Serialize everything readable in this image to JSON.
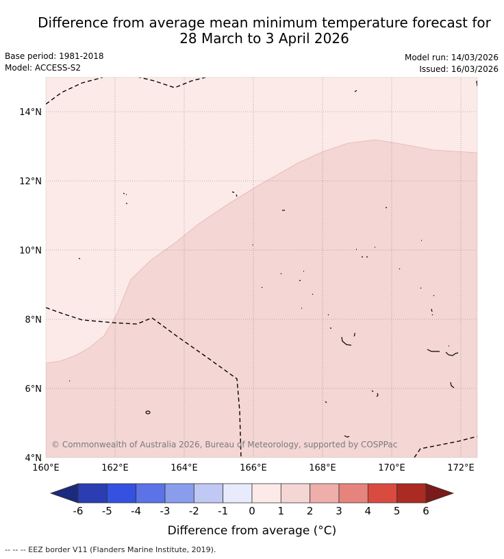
{
  "title_line1": "Difference from average mean minimum temperature forecast for",
  "title_line2": "28 March to 3 April 2026",
  "base_period": "Base period: 1981-2018",
  "model": "Model: ACCESS-S2",
  "model_run": "Model run: 14/03/2026",
  "issued": "Issued: 16/03/2026",
  "copyright": "© Commonwealth of Australia 2026, Bureau of Meteorology, supported by COSPPac",
  "map": {
    "lon_ticks": [
      "160°E",
      "162°E",
      "164°E",
      "166°E",
      "168°E",
      "170°E",
      "172°E"
    ],
    "lat_ticks": [
      "14°N",
      "12°N",
      "10°N",
      "8°N",
      "6°N",
      "4°N"
    ],
    "regions": [
      {
        "name": "0 to 1",
        "color": "#fbeae8"
      },
      {
        "name": "1 to 2",
        "color": "#f4d6d4"
      }
    ],
    "eez_color": "#000000"
  },
  "colorbar": {
    "label": "Difference from average (°C)",
    "tick_labels": [
      "-6",
      "-5",
      "-4",
      "-3",
      "-2",
      "-1",
      "0",
      "1",
      "2",
      "3",
      "4",
      "5",
      "6"
    ],
    "under_color": "#1b2a7d",
    "over_color": "#7a1a1a",
    "colors": [
      "#2a3eb1",
      "#3451e0",
      "#5b73e6",
      "#8a9dec",
      "#c0c8f4",
      "#e8ebfb",
      "#fbeae8",
      "#f4d6d4",
      "#eeaeaa",
      "#e6837d",
      "#d94a41",
      "#ab2a22"
    ]
  },
  "footer": "-- -- -- EEZ border V11 (Flanders Marine Institute, 2019)."
}
